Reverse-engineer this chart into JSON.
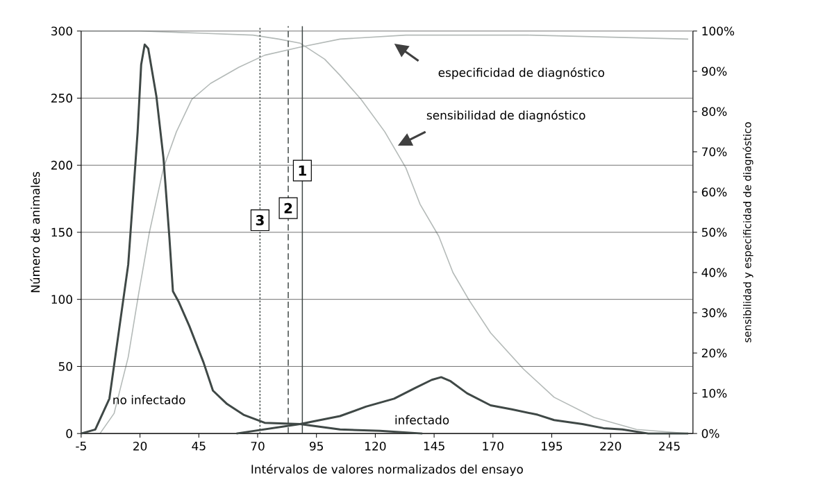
{
  "chart_data": {
    "type": "line",
    "xlabel": "Intérvalos de valores normalizados del ensayo",
    "ylabel": "Número de animales",
    "y2label": "sensibilidad y especificidad de diagnóstico",
    "xlim": [
      -5,
      255
    ],
    "xticks": [
      -5,
      20,
      45,
      70,
      95,
      120,
      145,
      170,
      195,
      220,
      245
    ],
    "ylim": [
      0,
      300
    ],
    "yticks": [
      0,
      50,
      100,
      150,
      200,
      250,
      300
    ],
    "y2lim": [
      0,
      100
    ],
    "y2ticks": [
      {
        "value": 0,
        "label": "0%"
      },
      {
        "value": 10,
        "label": "10%"
      },
      {
        "value": 20,
        "label": "20%"
      },
      {
        "value": 30,
        "label": "30%"
      },
      {
        "value": 40,
        "label": "40%"
      },
      {
        "value": 50,
        "label": "50%"
      },
      {
        "value": 60,
        "label": "60%"
      },
      {
        "value": 70,
        "label": "70%"
      },
      {
        "value": 80,
        "label": "80%"
      },
      {
        "value": 90,
        "label": "90%"
      },
      {
        "value": 100,
        "label": "100%"
      }
    ],
    "grid": "y",
    "series": [
      {
        "color": "#3f4846",
        "x": [
          -5,
          1,
          7,
          11,
          15,
          17,
          19,
          20.5,
          22,
          23.5,
          27,
          30,
          32.5,
          34,
          36.5,
          41,
          47,
          51,
          57,
          64,
          73,
          88,
          105,
          122,
          140
        ],
        "values": [
          0,
          3,
          26,
          76,
          126,
          175,
          225,
          275,
          290,
          287,
          251,
          205,
          146,
          106,
          98,
          80,
          53,
          32,
          22,
          14,
          8,
          7,
          3,
          2,
          0
        ]
      },
      {
        "color": "#3f4846",
        "x": [
          61,
          88,
          105,
          116,
          128,
          137,
          144,
          148,
          152,
          159,
          169,
          178,
          189,
          196,
          208,
          217,
          225,
          236,
          253
        ],
        "values": [
          0,
          7,
          13,
          20,
          26,
          34,
          40,
          42,
          39,
          30,
          21,
          18,
          14,
          10,
          7,
          4,
          3,
          0,
          0
        ]
      },
      {
        "color": "#b4bab8",
        "axis": "y2",
        "x": [
          3,
          9,
          15,
          19.5,
          24,
          30,
          35.5,
          42,
          50,
          62,
          73,
          88,
          105,
          133,
          185,
          253
        ],
        "values": [
          0,
          5,
          19,
          35,
          50,
          66,
          75,
          83,
          87,
          91,
          94,
          96,
          98,
          99,
          99,
          98
        ]
      },
      {
        "color": "#b4bab8",
        "axis": "y2",
        "x": [
          -5,
          20,
          45,
          68,
          79,
          88,
          98.5,
          105,
          114,
          124,
          133,
          139,
          147,
          153,
          160,
          169,
          183,
          196,
          213,
          231,
          253
        ],
        "values": [
          100,
          100,
          99.5,
          99,
          98,
          97,
          93,
          89,
          83,
          75,
          66,
          57,
          49,
          40,
          33,
          25,
          16,
          9,
          4,
          1,
          0
        ]
      }
    ],
    "ref_lines": [
      {
        "axis": "x",
        "value": 89,
        "line_style": "solid",
        "color": "#3f4846"
      },
      {
        "axis": "x",
        "value": 83,
        "line_style": "dashed",
        "color": "#3f4846"
      },
      {
        "axis": "x",
        "value": 71,
        "line_style": "dotted",
        "color": "#3f4846"
      }
    ],
    "annotations": [
      {
        "text": "1",
        "x": 89,
        "y": 196
      },
      {
        "text": "2",
        "x": 83,
        "y": 168
      },
      {
        "text": "3",
        "x": 71,
        "y": 159
      },
      "no infectado",
      "infectado",
      "especificidad de diagnóstico",
      "sensibilidad de diagnóstico"
    ]
  }
}
